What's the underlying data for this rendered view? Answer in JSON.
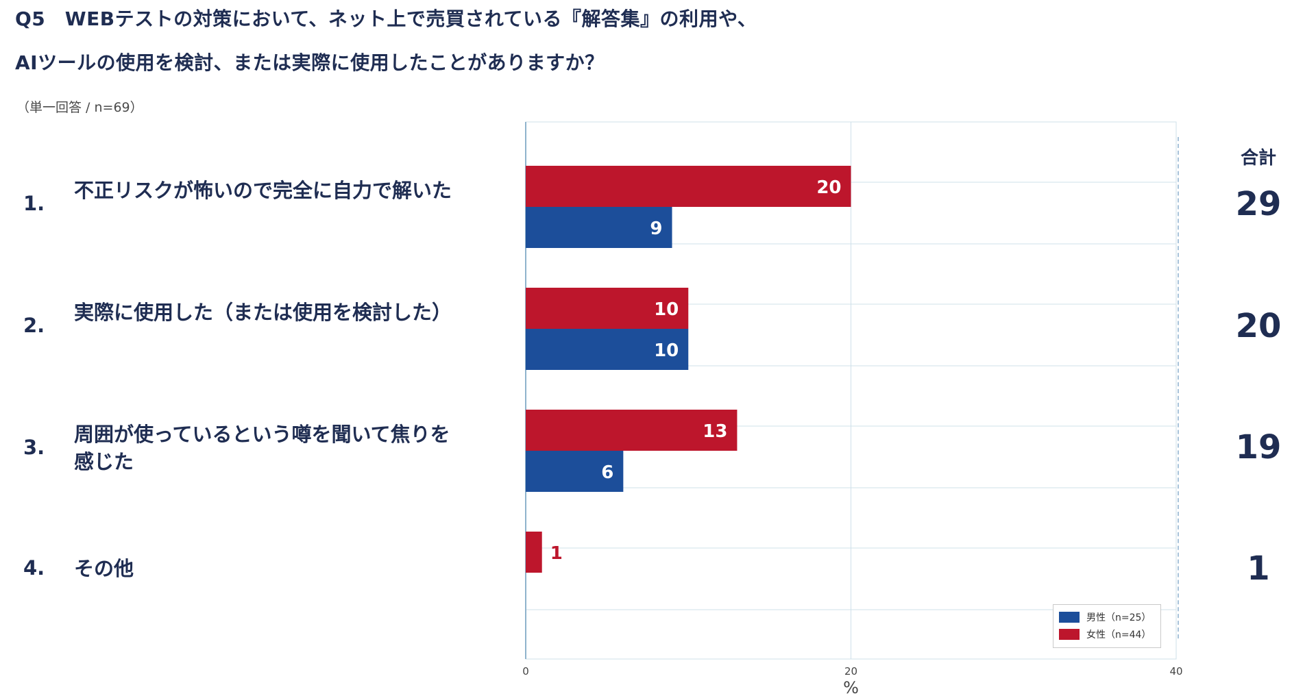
{
  "title": {
    "line1": "Q5　WEBテストの対策において、ネット上で売買されている『解答集』の利用や、",
    "line2": "AIツールの使用を検討、または実際に使用したことがありますか？"
  },
  "note": "（単一回答 / n=69）",
  "totals_header": "合計",
  "colors": {
    "male": "#1c4e9a",
    "female": "#bd162c",
    "grid": "#cfe0ea",
    "axis": "#8fb3cc"
  },
  "chart_data": {
    "type": "bar",
    "orientation": "horizontal",
    "categories": [
      {
        "num": "1.",
        "label": "不正リスクが怖いので完全に自力で解いた"
      },
      {
        "num": "2.",
        "label": "実際に使用した（または使用を検討した）"
      },
      {
        "num": "3.",
        "label": "周囲が使っているという噂を聞いて焦りを感じた"
      },
      {
        "num": "4.",
        "label": "その他"
      }
    ],
    "series": [
      {
        "name": "女性（n=44）",
        "key": "female",
        "values": [
          20,
          10,
          13,
          1
        ]
      },
      {
        "name": "男性（n=25）",
        "key": "male",
        "values": [
          9,
          10,
          6,
          0
        ]
      }
    ],
    "totals": [
      "29",
      "20",
      "19",
      "1"
    ],
    "xlabel": "%",
    "xlim": [
      0,
      40
    ],
    "xticks": [
      "0",
      "20",
      "40"
    ],
    "grid": true,
    "legend_position": "bottom-right"
  }
}
